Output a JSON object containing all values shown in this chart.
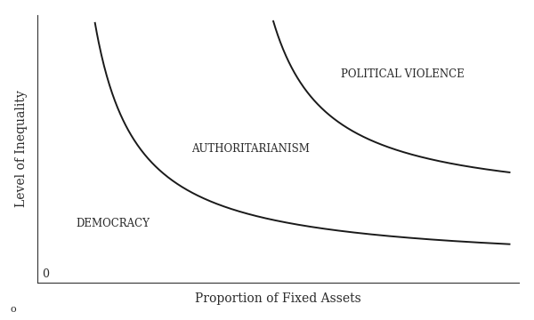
{
  "title": "",
  "xlabel": "Proportion of Fixed Assets",
  "ylabel": "Level of Inequality",
  "background_color": "#ffffff",
  "line_color": "#1a1a1a",
  "text_color": "#2a2a2a",
  "label_democracy": "DEMOCRACY",
  "label_authoritarianism": "AUTHORITARIANISM",
  "label_violence": "POLITICAL VIOLENCE",
  "xlim": [
    0,
    1.0
  ],
  "ylim": [
    0,
    1.0
  ],
  "xlabel_fontsize": 10,
  "ylabel_fontsize": 10,
  "label_fontsize": 8.5
}
